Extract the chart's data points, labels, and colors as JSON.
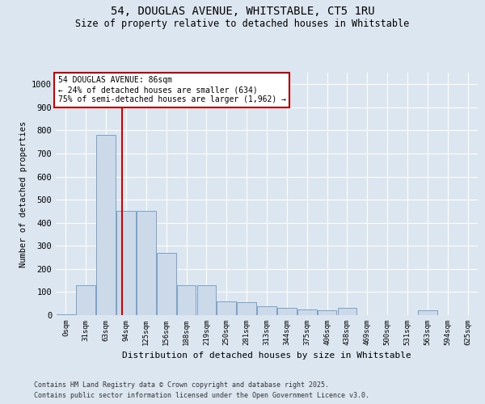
{
  "title_line1": "54, DOUGLAS AVENUE, WHITSTABLE, CT5 1RU",
  "title_line2": "Size of property relative to detached houses in Whitstable",
  "xlabel": "Distribution of detached houses by size in Whitstable",
  "ylabel": "Number of detached properties",
  "bin_labels": [
    "0sqm",
    "31sqm",
    "63sqm",
    "94sqm",
    "125sqm",
    "156sqm",
    "188sqm",
    "219sqm",
    "250sqm",
    "281sqm",
    "313sqm",
    "344sqm",
    "375sqm",
    "406sqm",
    "438sqm",
    "469sqm",
    "500sqm",
    "531sqm",
    "563sqm",
    "594sqm",
    "625sqm"
  ],
  "bar_values": [
    2,
    130,
    780,
    450,
    450,
    270,
    130,
    130,
    60,
    55,
    40,
    30,
    25,
    20,
    30,
    0,
    0,
    0,
    20,
    0,
    0
  ],
  "vline_x": 2.78,
  "annotation_text": "54 DOUGLAS AVENUE: 86sqm\n← 24% of detached houses are smaller (634)\n75% of semi-detached houses are larger (1,962) →",
  "bar_color": "#ccd9e8",
  "bar_edge_color": "#7aa3c8",
  "vline_color": "#cc0000",
  "annotation_box_color": "#cc0000",
  "bg_color": "#dce6f0",
  "plot_bg_color": "#dce6f0",
  "footer_line1": "Contains HM Land Registry data © Crown copyright and database right 2025.",
  "footer_line2": "Contains public sector information licensed under the Open Government Licence v3.0.",
  "ylim": [
    0,
    1050
  ],
  "yticks": [
    0,
    100,
    200,
    300,
    400,
    500,
    600,
    700,
    800,
    900,
    1000
  ]
}
